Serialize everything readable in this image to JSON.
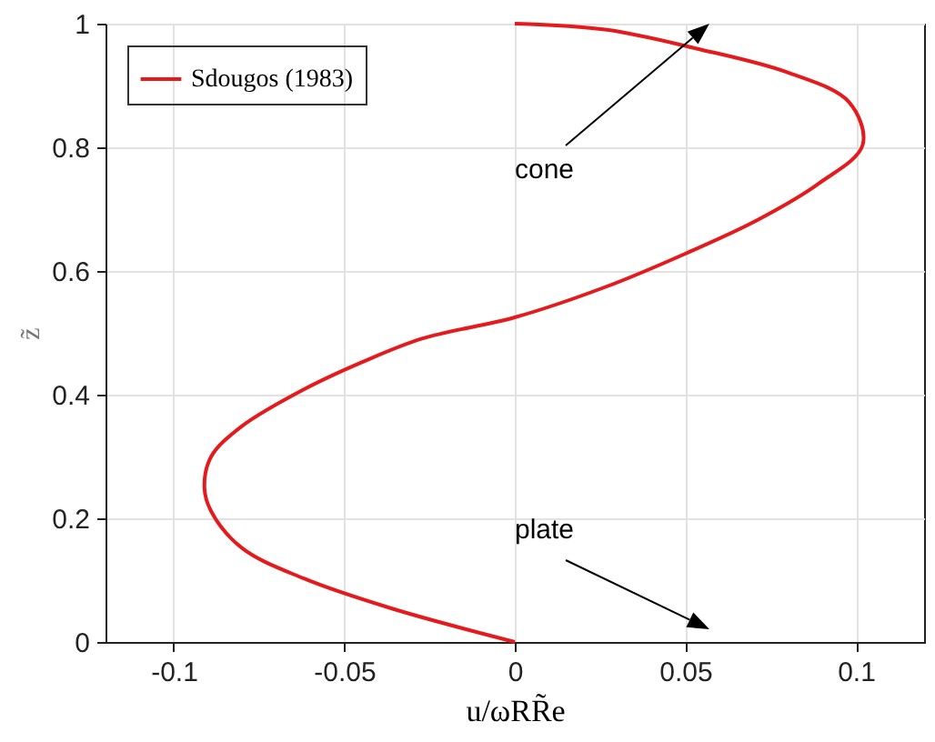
{
  "chart_data": {
    "type": "line",
    "xlabel": "u/ωRR̃e",
    "ylabel": "z̃",
    "xlim": [
      -0.12,
      0.12
    ],
    "ylim": [
      0,
      1
    ],
    "xticks": [
      -0.1,
      -0.05,
      0,
      0.05,
      0.1
    ],
    "yticks": [
      0,
      0.2,
      0.4,
      0.6,
      0.8,
      1
    ],
    "grid": true,
    "legend": "top left",
    "series": [
      {
        "name": "Sdougos (1983)",
        "color": "#e41a1c",
        "x": [
          0,
          -0.036,
          -0.062,
          -0.08,
          -0.089,
          -0.091,
          -0.089,
          -0.08,
          -0.062,
          -0.045,
          -0.027,
          0,
          0.027,
          0.05,
          0.071,
          0.089,
          0.102,
          0.098,
          0.08,
          0.053,
          0.027,
          0
        ],
        "values": [
          0,
          0.054,
          0.103,
          0.152,
          0.211,
          0.25,
          0.3,
          0.349,
          0.408,
          0.452,
          0.491,
          0.525,
          0.575,
          0.628,
          0.682,
          0.741,
          0.804,
          0.873,
          0.921,
          0.96,
          0.99,
          1
        ]
      }
    ],
    "annotations": [
      "cone",
      "plate"
    ]
  }
}
